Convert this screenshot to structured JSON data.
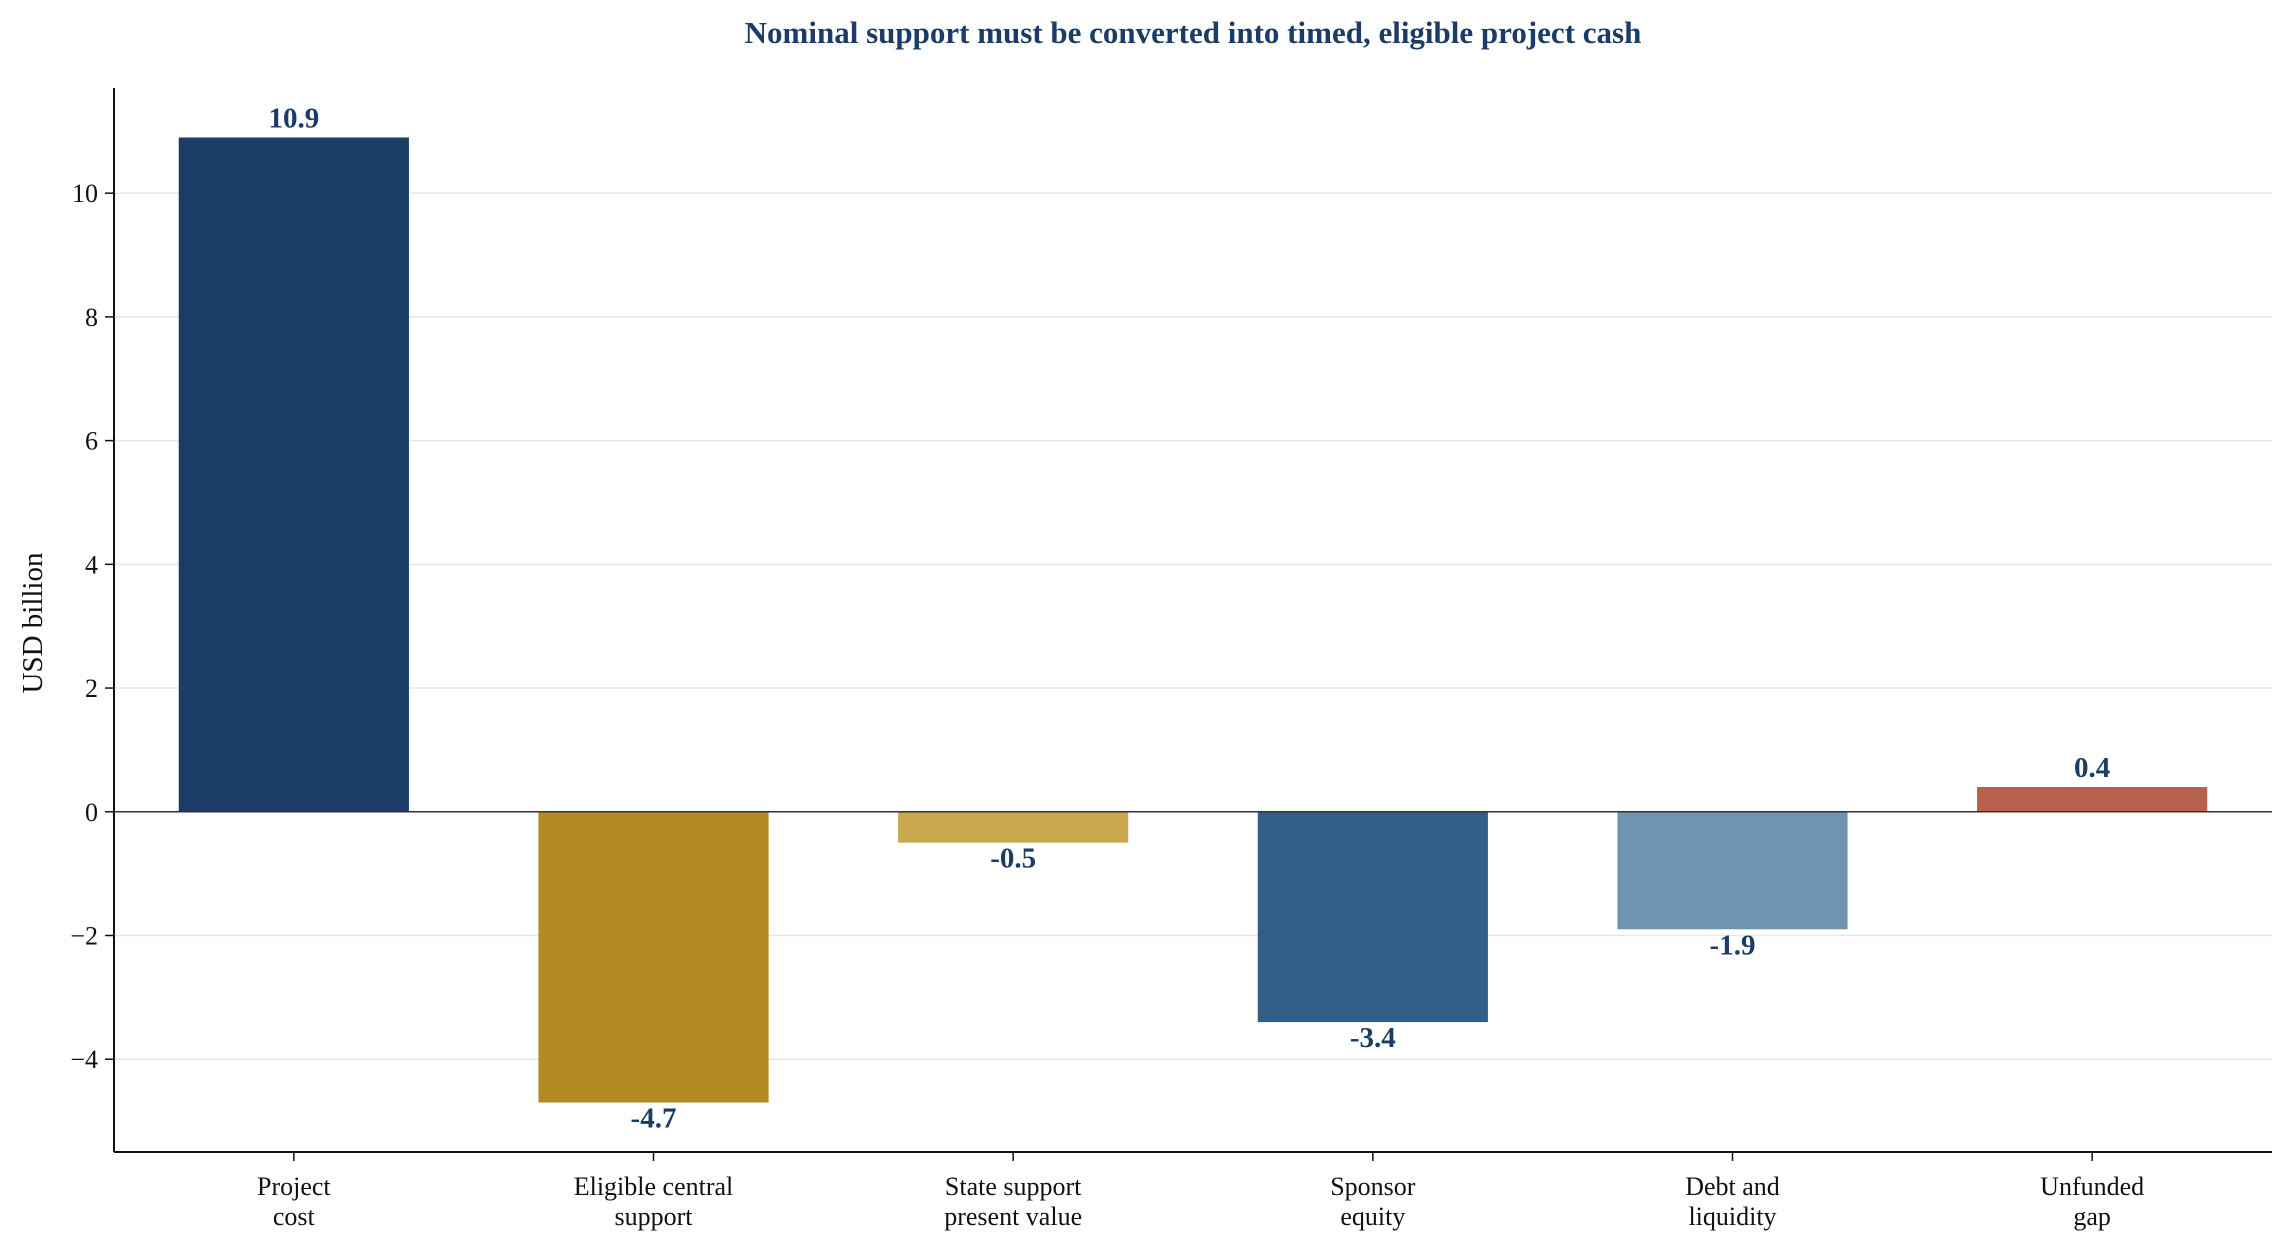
{
  "chart_data": {
    "type": "bar",
    "title": "Nominal support must be converted into timed, eligible project cash",
    "xlabel": "",
    "ylabel": "USD billion",
    "categories": [
      [
        "Project",
        "cost"
      ],
      [
        "Eligible central",
        "support"
      ],
      [
        "State support",
        "present value"
      ],
      [
        "Sponsor",
        "equity"
      ],
      [
        "Debt and",
        "liquidity"
      ],
      [
        "Unfunded",
        "gap"
      ]
    ],
    "values": [
      10.9,
      -4.7,
      -0.5,
      -3.4,
      -1.9,
      0.4
    ],
    "value_labels": [
      "10.9",
      "-4.7",
      "-0.5",
      "-3.4",
      "-1.9",
      "0.4"
    ],
    "bar_colors": [
      "#1a3c66",
      "#b38b22",
      "#c9a74f",
      "#325f88",
      "#7093b0",
      "#b5614c"
    ],
    "ylim": [
      -5.5,
      11.7
    ],
    "yticks": [
      -4,
      -2,
      0,
      2,
      4,
      6,
      8,
      10
    ],
    "ytick_labels": [
      "−4",
      "−2",
      "0",
      "2",
      "4",
      "6",
      "8",
      "10"
    ],
    "grid": true,
    "legend": "none",
    "colors": {
      "title": "#1a3c66",
      "label": "#1a3c66",
      "grid": "#e6e6e6",
      "axis": "#111111"
    }
  }
}
